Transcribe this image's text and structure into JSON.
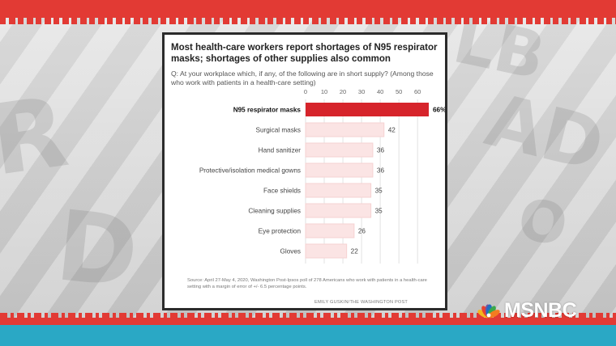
{
  "chart_data": {
    "type": "bar",
    "orientation": "horizontal",
    "title": "Most health-care workers report shortages of N95 respirator masks; shortages of other supplies also common",
    "subtitle": "Q: At your workplace which, if any, of the following are in short supply? (Among those who work with patients in a health-care setting)",
    "categories": [
      "N95 respirator masks",
      "Surgical masks",
      "Hand sanitizer",
      "Protective/isolation medical gowns",
      "Face shields",
      "Cleaning supplies",
      "Eye protection",
      "Gloves"
    ],
    "values": [
      66,
      42,
      36,
      36,
      35,
      35,
      26,
      22
    ],
    "value_labels": [
      "66%",
      "42",
      "36",
      "36",
      "35",
      "35",
      "26",
      "22"
    ],
    "x_ticks": [
      0,
      10,
      20,
      30,
      40,
      50,
      60
    ],
    "xlim": [
      0,
      66
    ],
    "grid": true,
    "highlight_color": "#d6242b",
    "bar_color": "#fbe4e4",
    "source": "Source: April 27-May 4, 2020, Washington Post-Ipsos poll of 278 Americans who work with patients in a health-care setting with a margin of error of +/- 6.5 percentage points.",
    "credit": "EMILY GUSKIN/THE WASHINGTON POST"
  },
  "network": {
    "logo_label": "MSNBC",
    "peacock_colors": [
      "#f4b51c",
      "#e8422f",
      "#7b4fa0",
      "#1f6fbf",
      "#3aa84a",
      "#f37c20"
    ]
  }
}
